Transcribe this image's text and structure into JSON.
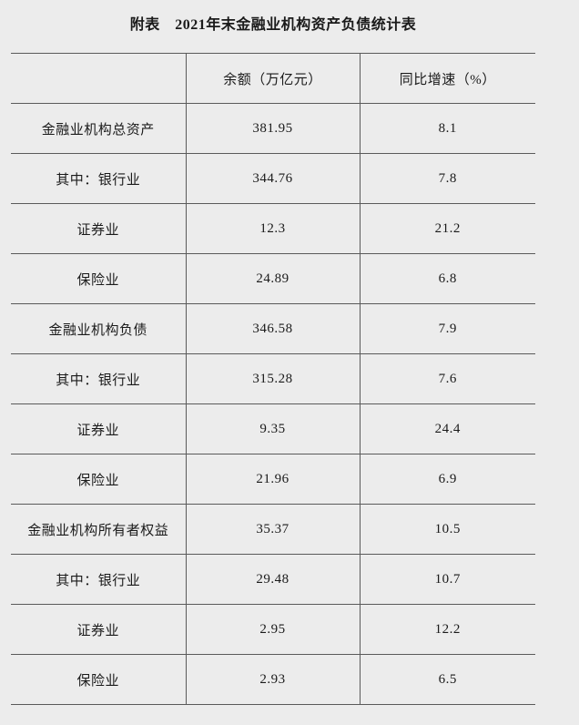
{
  "colors": {
    "background": "#ececec",
    "rule_line": "#5a5a5a",
    "text": "#1a1a1a"
  },
  "title": "附表　2021年末金融业机构资产负债统计表",
  "table": {
    "header": {
      "item": "",
      "balance": "余额（万亿元）",
      "growth": "同比增速（%）"
    },
    "rows": [
      {
        "label": "金融业机构总资产",
        "balance": "381.95",
        "growth": "8.1"
      },
      {
        "label": "其中：银行业",
        "balance": "344.76",
        "growth": "7.8"
      },
      {
        "label": "证券业",
        "balance": "12.3",
        "growth": "21.2"
      },
      {
        "label": "保险业",
        "balance": "24.89",
        "growth": "6.8"
      },
      {
        "label": "金融业机构负债",
        "balance": "346.58",
        "growth": "7.9"
      },
      {
        "label": "其中：银行业",
        "balance": "315.28",
        "growth": "7.6"
      },
      {
        "label": "证券业",
        "balance": "9.35",
        "growth": "24.4"
      },
      {
        "label": "保险业",
        "balance": "21.96",
        "growth": "6.9"
      },
      {
        "label": "金融业机构所有者权益",
        "balance": "35.37",
        "growth": "10.5"
      },
      {
        "label": "其中：银行业",
        "balance": "29.48",
        "growth": "10.7"
      },
      {
        "label": "证券业",
        "balance": "2.95",
        "growth": "12.2"
      },
      {
        "label": "保险业",
        "balance": "2.93",
        "growth": "6.5"
      }
    ]
  }
}
